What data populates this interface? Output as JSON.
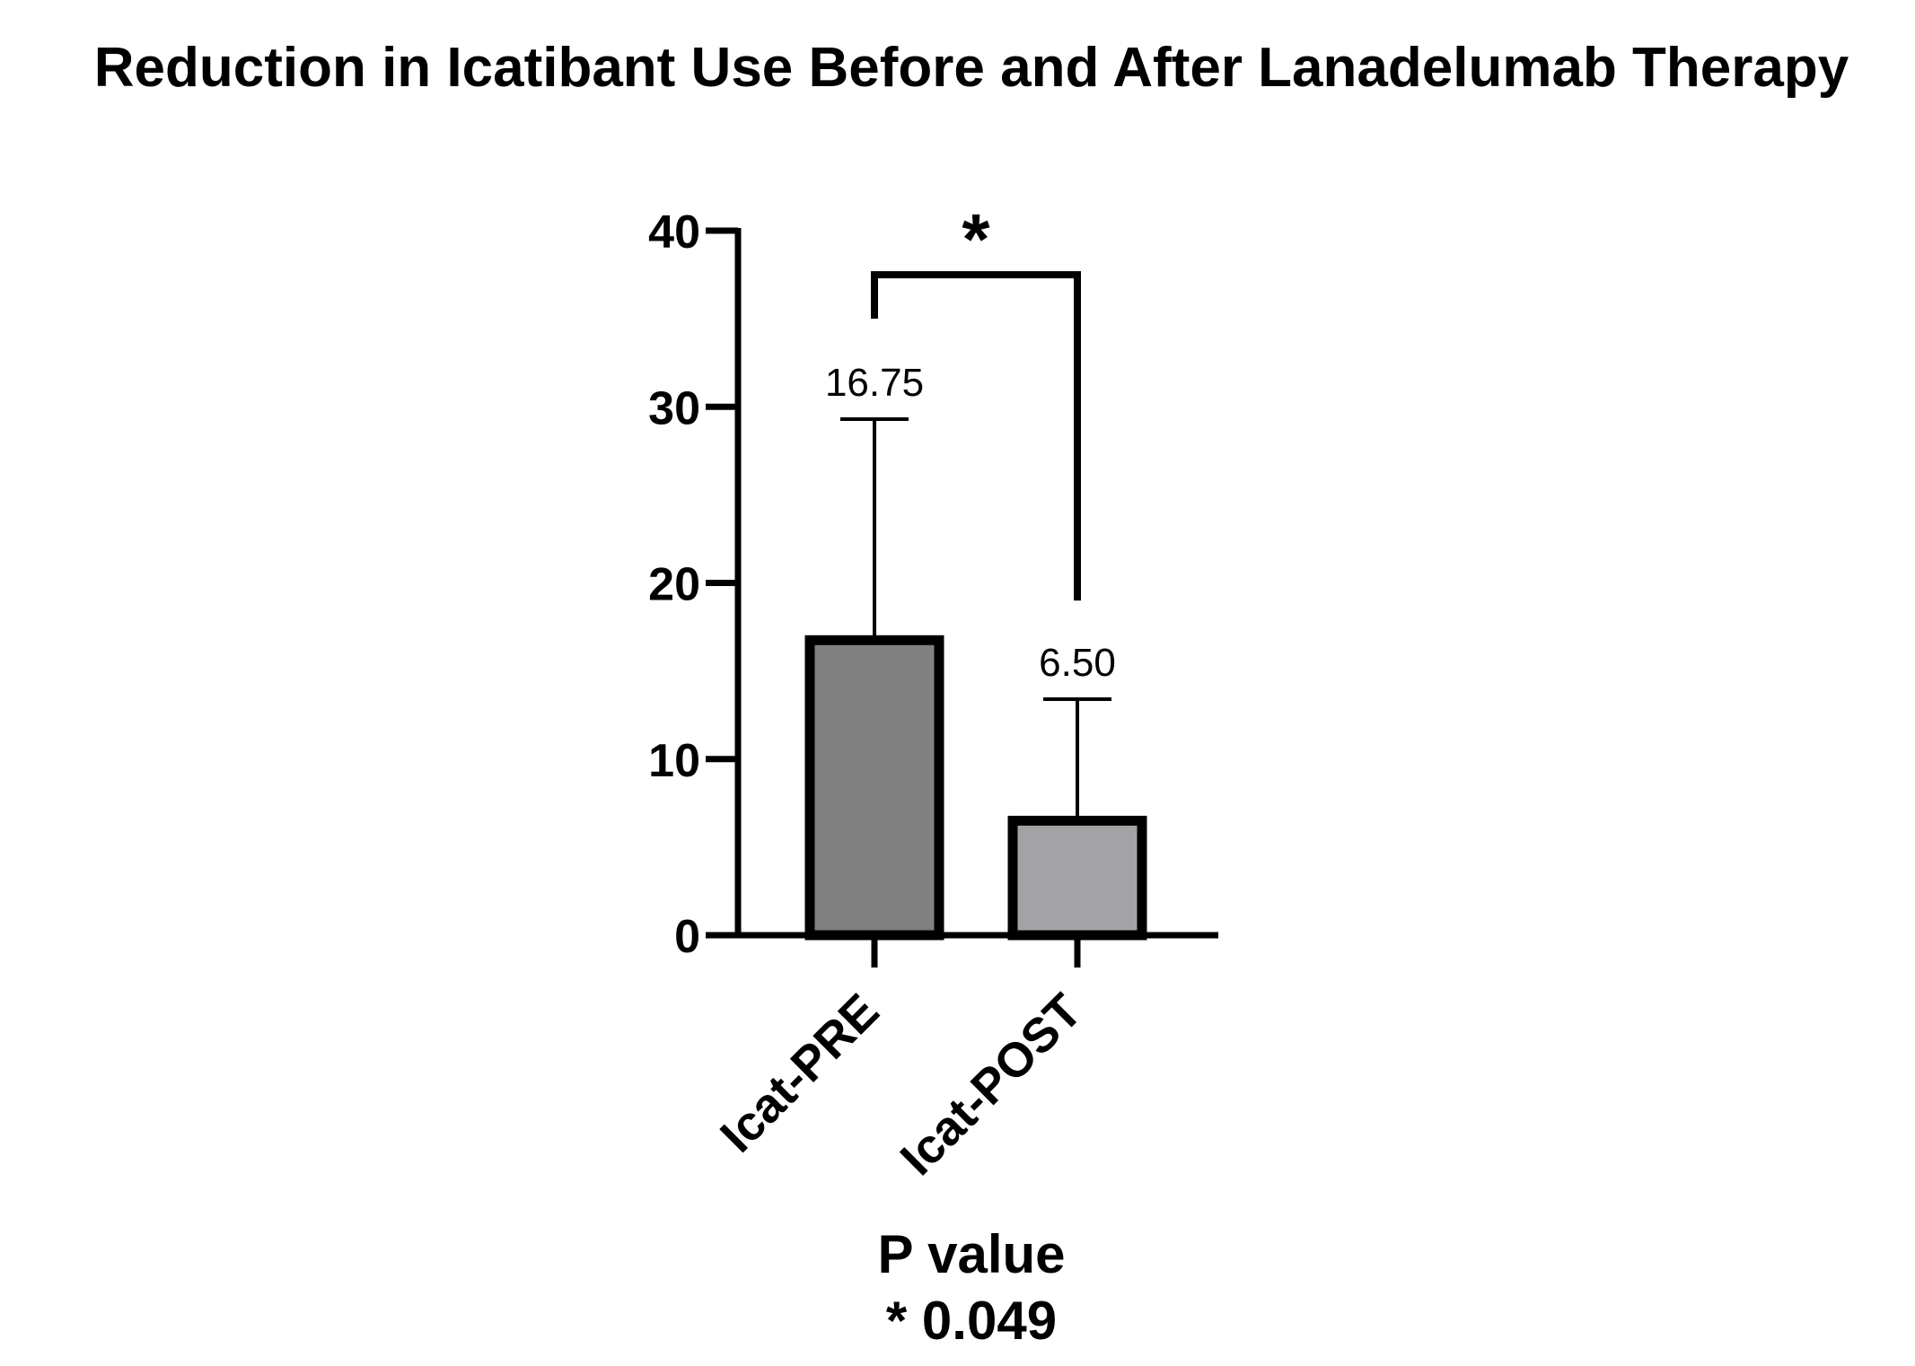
{
  "chart_data": {
    "type": "bar",
    "title": "Reduction in Icatibant Use Before and After Lanadelumab Therapy",
    "categories": [
      "Icat-PRE",
      "Icat-POST"
    ],
    "values": [
      16.75,
      6.5
    ],
    "value_labels": [
      "16.75",
      "6.50"
    ],
    "error_upper": [
      29.3,
      13.4
    ],
    "bar_colors": [
      "#808080",
      "#a3a3a6"
    ],
    "bar_edge_color": "#000000",
    "ylim": [
      0,
      40
    ],
    "yticks": [
      0,
      10,
      20,
      30,
      40
    ],
    "ytick_labels": [
      "0",
      "10",
      "20",
      "30",
      "40"
    ],
    "xlabel": "",
    "ylabel": "",
    "grid": false,
    "significance": {
      "marker": "*",
      "bracket_y": 37.5,
      "left_leg_bottom": 35,
      "right_leg_bottom": 19
    },
    "annotation": {
      "line1": "P value",
      "line2": "* 0.049"
    }
  }
}
